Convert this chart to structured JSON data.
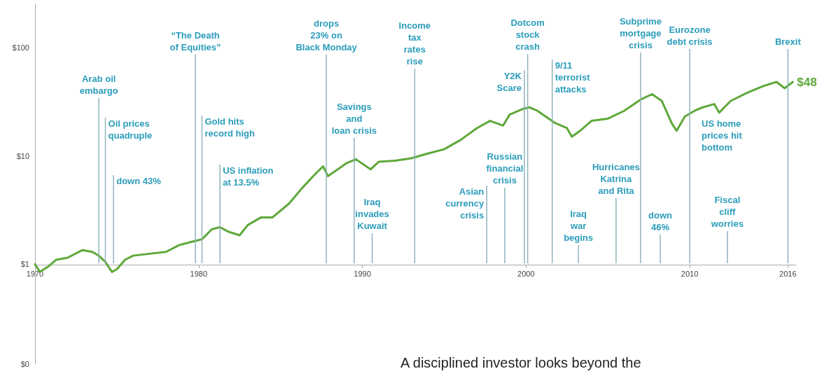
{
  "chart_data": {
    "type": "line",
    "log": "y",
    "marker": "none",
    "xlim": [
      1970,
      2016.5
    ],
    "xticks": [
      1970,
      1980,
      1990,
      2000,
      2010,
      2016
    ],
    "ylim": [
      0.12,
      250
    ],
    "yticks": [
      {
        "value": 0.12,
        "label": "$0"
      },
      {
        "value": 1,
        "label": "$1"
      },
      {
        "value": 10,
        "label": "$10"
      },
      {
        "value": 100,
        "label": "$100"
      }
    ],
    "series": [
      {
        "color": "#5fa83a",
        "x": [
          1970.0,
          1970.3,
          1970.8,
          1971.3,
          1972.0,
          1972.9,
          1973.5,
          1973.9,
          1974.3,
          1974.7,
          1975.0,
          1975.5,
          1976.0,
          1977.0,
          1978.0,
          1978.8,
          1979.5,
          1980.2,
          1980.8,
          1981.3,
          1981.8,
          1982.5,
          1983.0,
          1983.8,
          1984.5,
          1985.5,
          1986.3,
          1987.0,
          1987.6,
          1987.9,
          1988.5,
          1989.0,
          1989.6,
          1990.5,
          1991.0,
          1992.0,
          1993.0,
          1994.0,
          1995.0,
          1996.0,
          1997.0,
          1997.8,
          1998.6,
          1999.0,
          1999.8,
          2000.2,
          2000.7,
          2001.2,
          2001.8,
          2002.5,
          2002.8,
          2003.3,
          2004.0,
          2005.0,
          2006.0,
          2007.0,
          2007.7,
          2008.3,
          2008.9,
          2009.2,
          2009.7,
          2010.3,
          2010.8,
          2011.5,
          2011.8,
          2012.5,
          2013.5,
          2014.5,
          2015.3,
          2015.8,
          2016.3
        ],
        "values": [
          1.0,
          0.85,
          0.95,
          1.1,
          1.15,
          1.35,
          1.3,
          1.2,
          1.05,
          0.85,
          0.9,
          1.1,
          1.2,
          1.25,
          1.3,
          1.5,
          1.6,
          1.7,
          2.1,
          2.2,
          2.0,
          1.85,
          2.3,
          2.7,
          2.7,
          3.6,
          5.0,
          6.5,
          8.0,
          6.5,
          7.5,
          8.5,
          9.3,
          7.5,
          8.8,
          9.0,
          9.5,
          10.5,
          11.5,
          14,
          18,
          21,
          19,
          24,
          27,
          28,
          26,
          23,
          20,
          18,
          15,
          17,
          21,
          22,
          26,
          33,
          37,
          32,
          20,
          17,
          23,
          26,
          28,
          30,
          25,
          32,
          38,
          44,
          48,
          42,
          48
        ],
        "value_labels": [
          null,
          null,
          null,
          null,
          null,
          null,
          null,
          null,
          null,
          null,
          null,
          null,
          null,
          null,
          null,
          null,
          null,
          null,
          null,
          null,
          null,
          null,
          null,
          null,
          null,
          null,
          null,
          null,
          null,
          null,
          null,
          null,
          null,
          null,
          null,
          null,
          null,
          null,
          null,
          null,
          null,
          null,
          null,
          null,
          null,
          null,
          null,
          null,
          null,
          null,
          null,
          null,
          null,
          null,
          null,
          null,
          null,
          null,
          null,
          null,
          null,
          null,
          null,
          null,
          null,
          null,
          null,
          null,
          null,
          null,
          "$48"
        ]
      }
    ],
    "ref_lines": [
      {
        "axis": "x",
        "value": 1973.9,
        "label": "Arab oil\nembargo"
      },
      {
        "axis": "x",
        "value": 1974.3,
        "label": "Oil prices\nquadruple"
      },
      {
        "axis": "x",
        "value": 1974.8,
        "label": "down 43%"
      },
      {
        "axis": "x",
        "value": 1979.8,
        "label": "“The Death\nof Equities”"
      },
      {
        "axis": "x",
        "value": 1980.2,
        "label": "Gold hits\nrecord high"
      },
      {
        "axis": "x",
        "value": 1981.3,
        "label": "US inflation\nat 13.5%"
      },
      {
        "axis": "x",
        "value": 1987.8,
        "label": "drops\n23% on\nBlack Monday"
      },
      {
        "axis": "x",
        "value": 1989.5,
        "label": "Savings\nand\nloan crisis"
      },
      {
        "axis": "x",
        "value": 1990.6,
        "label": "Iraq\ninvades\nKuwait"
      },
      {
        "axis": "x",
        "value": 1993.2,
        "label": "Income\ntax\nrates\nrise"
      },
      {
        "axis": "x",
        "value": 1997.6,
        "label": "Asian\ncurrency\ncrisis"
      },
      {
        "axis": "x",
        "value": 1998.7,
        "label": "Russian\nfinancial\ncrisis"
      },
      {
        "axis": "x",
        "value": 1999.9,
        "label": "Y2K\nScare"
      },
      {
        "axis": "x",
        "value": 2000.1,
        "label": "Dotcom\nstock\ncrash"
      },
      {
        "axis": "x",
        "value": 2001.6,
        "label": "9/11\nterrorist\nattacks"
      },
      {
        "axis": "x",
        "value": 2003.2,
        "label": "Iraq\nwar\nbegins"
      },
      {
        "axis": "x",
        "value": 2005.5,
        "label": "Hurricanes\nKatrina\nand Rita"
      },
      {
        "axis": "x",
        "value": 2007.0,
        "label": "Subprime\nmortgage\ncrisis"
      },
      {
        "axis": "x",
        "value": 2008.2,
        "label": "down\n46%"
      },
      {
        "axis": "x",
        "value": 2010.0,
        "label": "Eurozone\ndebt crisis"
      },
      {
        "axis": "x",
        "value": 2012.3,
        "label": "Fiscal\ncliff\nworries"
      },
      {
        "axis": "x",
        "value": 2016.0,
        "label": "Brexit"
      }
    ],
    "annotations": [
      "US home\nprices hit\nbottom",
      "A disciplined investor looks beyond the"
    ]
  }
}
